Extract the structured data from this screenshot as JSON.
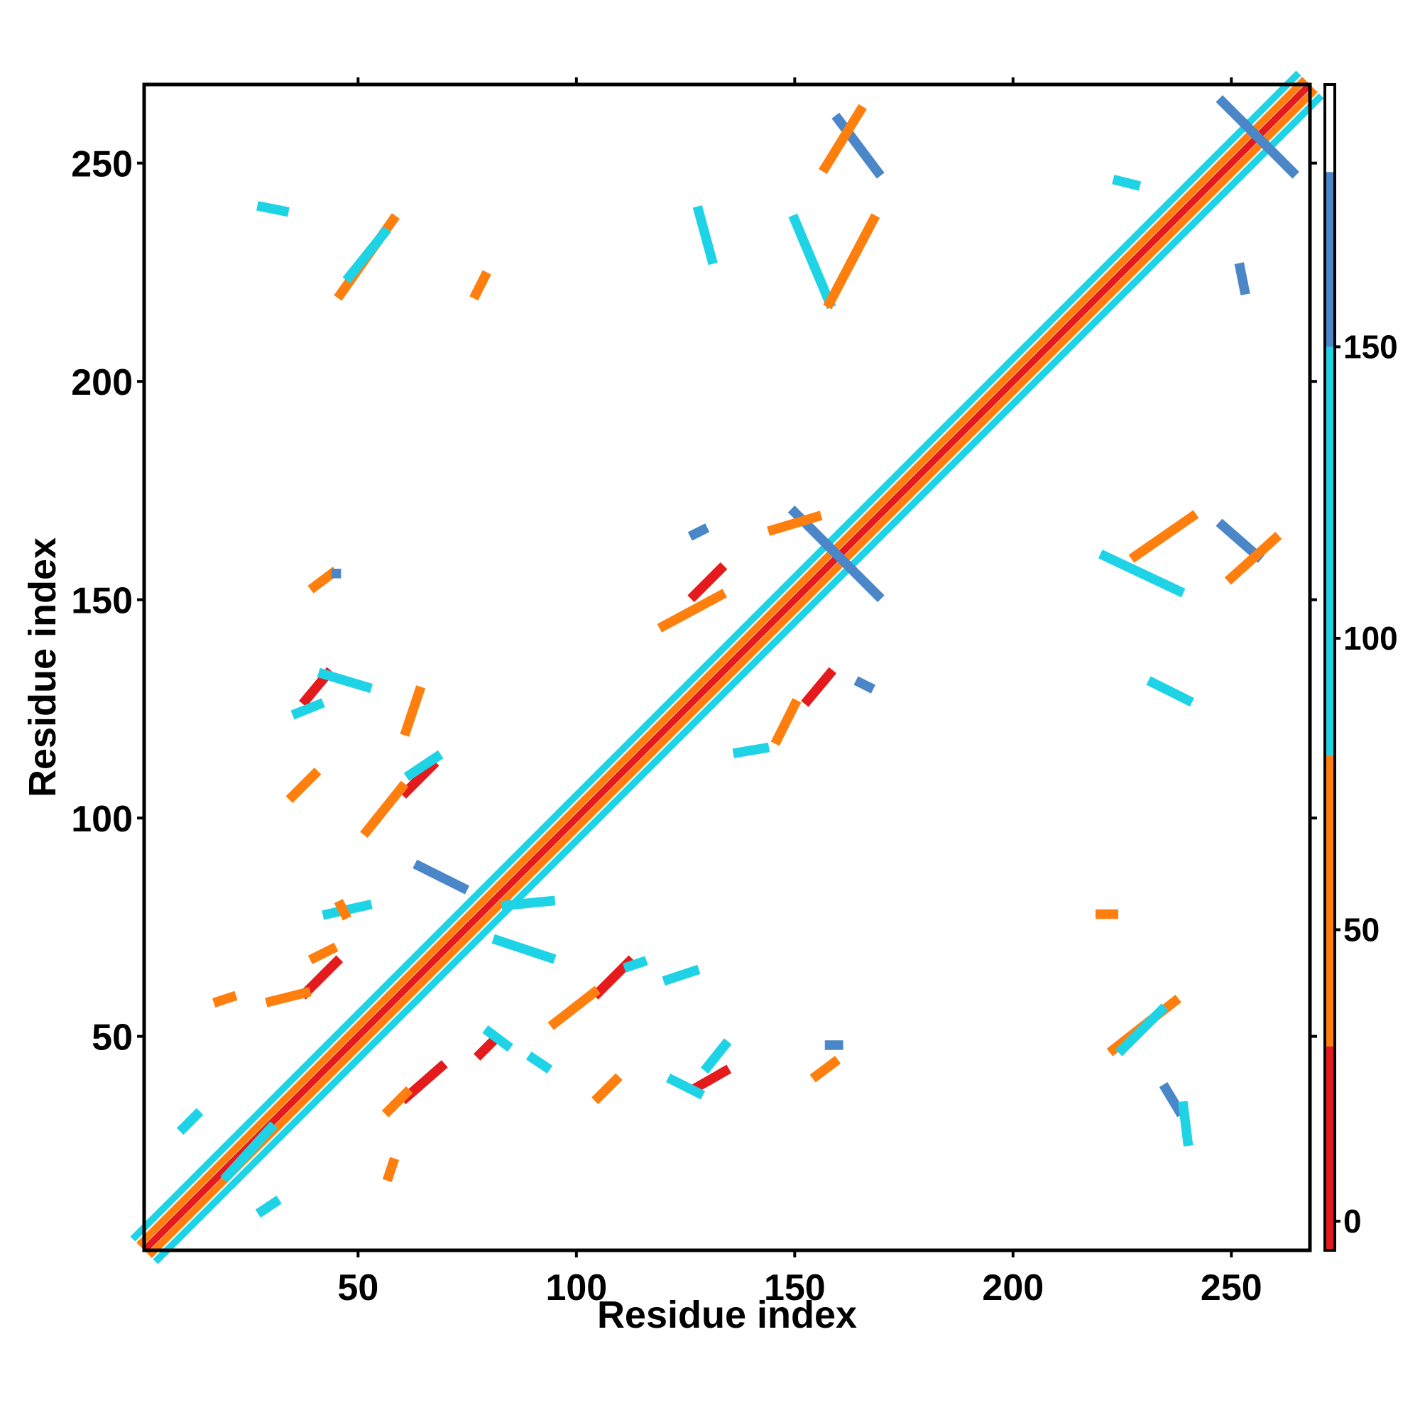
{
  "chart_data": {
    "type": "heatmap",
    "title": "",
    "xlabel": "Residue index",
    "ylabel": "Residue index",
    "xlim": [
      1,
      268
    ],
    "ylim": [
      1,
      268
    ],
    "x_ticks": [
      50,
      100,
      150,
      200,
      250
    ],
    "y_ticks": [
      50,
      100,
      150,
      200,
      250
    ],
    "colorbar": {
      "ticks": [
        0,
        50,
        100,
        150
      ],
      "range": [
        -5,
        195
      ],
      "bands": [
        {
          "from": -5,
          "to": 30,
          "color": "#e41a1c"
        },
        {
          "from": 30,
          "to": 80,
          "color": "#ff7f0e"
        },
        {
          "from": 80,
          "to": 150,
          "color": "#1fd3e6"
        },
        {
          "from": 150,
          "to": 180,
          "color": "#4a86c8"
        },
        {
          "from": 180,
          "to": 195,
          "color": "#ffffff"
        }
      ]
    },
    "diagonal": {
      "from": 1,
      "to": 268,
      "colors": [
        "#e41a1c",
        "#ff7f0e",
        "#1fd3e6"
      ]
    },
    "contact_segments": [
      {
        "x": [
          160,
          169
        ],
        "y": [
          260,
          248
        ],
        "color": "#4a86c8"
      },
      {
        "x": [
          157,
          165
        ],
        "y": [
          249,
          262
        ],
        "color": "#ff7f0e"
      },
      {
        "x": [
          28,
          33
        ],
        "y": [
          240,
          239
        ],
        "color": "#1fd3e6"
      },
      {
        "x": [
          46,
          58
        ],
        "y": [
          220,
          237
        ],
        "color": "#ff7f0e"
      },
      {
        "x": [
          48,
          56
        ],
        "y": [
          224,
          234
        ],
        "color": "#1fd3e6"
      },
      {
        "x": [
          77,
          79
        ],
        "y": [
          220,
          224
        ],
        "color": "#ff7f0e"
      },
      {
        "x": [
          128,
          131
        ],
        "y": [
          239,
          228
        ],
        "color": "#1fd3e6"
      },
      {
        "x": [
          150,
          158
        ],
        "y": [
          237,
          218
        ],
        "color": "#1fd3e6"
      },
      {
        "x": [
          158,
          168
        ],
        "y": [
          218,
          237
        ],
        "color": "#ff7f0e"
      },
      {
        "x": [
          248,
          264
        ],
        "y": [
          264,
          248
        ],
        "color": "#4a86c8"
      },
      {
        "x": [
          224,
          228
        ],
        "y": [
          246,
          245
        ],
        "color": "#1fd3e6"
      },
      {
        "x": [
          252,
          253
        ],
        "y": [
          226,
          221
        ],
        "color": "#4a86c8"
      },
      {
        "x": [
          150,
          169
        ],
        "y": [
          170,
          151
        ],
        "color": "#4a86c8"
      },
      {
        "x": [
          145,
          155
        ],
        "y": [
          166,
          169
        ],
        "color": "#ff7f0e"
      },
      {
        "x": [
          127,
          133
        ],
        "y": [
          151,
          157
        ],
        "color": "#e41a1c"
      },
      {
        "x": [
          120,
          133
        ],
        "y": [
          144,
          151
        ],
        "color": "#ff7f0e"
      },
      {
        "x": [
          127,
          129
        ],
        "y": [
          165,
          166
        ],
        "color": "#4a86c8"
      },
      {
        "x": [
          40,
          44
        ],
        "y": [
          153,
          156
        ],
        "color": "#ff7f0e"
      },
      {
        "x": [
          45,
          45
        ],
        "y": [
          156,
          156
        ],
        "color": "#4a86c8"
      },
      {
        "x": [
          38,
          43
        ],
        "y": [
          127,
          133
        ],
        "color": "#e41a1c"
      },
      {
        "x": [
          36,
          41
        ],
        "y": [
          124,
          126
        ],
        "color": "#1fd3e6"
      },
      {
        "x": [
          42,
          52
        ],
        "y": [
          133,
          130
        ],
        "color": "#1fd3e6"
      },
      {
        "x": [
          61,
          67
        ],
        "y": [
          106,
          112
        ],
        "color": "#e41a1c"
      },
      {
        "x": [
          62,
          68
        ],
        "y": [
          110,
          114
        ],
        "color": "#1fd3e6"
      },
      {
        "x": [
          52,
          60
        ],
        "y": [
          97,
          107
        ],
        "color": "#ff7f0e"
      },
      {
        "x": [
          35,
          40
        ],
        "y": [
          105,
          110
        ],
        "color": "#ff7f0e"
      },
      {
        "x": [
          61,
          64
        ],
        "y": [
          120,
          129
        ],
        "color": "#ff7f0e"
      },
      {
        "x": [
          153,
          158
        ],
        "y": [
          127,
          133
        ],
        "color": "#e41a1c"
      },
      {
        "x": [
          146,
          150
        ],
        "y": [
          118,
          126
        ],
        "color": "#ff7f0e"
      },
      {
        "x": [
          165,
          167
        ],
        "y": [
          131,
          130
        ],
        "color": "#4a86c8"
      },
      {
        "x": [
          137,
          143
        ],
        "y": [
          115,
          116
        ],
        "color": "#1fd3e6"
      },
      {
        "x": [
          228,
          241
        ],
        "y": [
          160,
          169
        ],
        "color": "#ff7f0e"
      },
      {
        "x": [
          221,
          238
        ],
        "y": [
          160,
          152
        ],
        "color": "#1fd3e6"
      },
      {
        "x": [
          248,
          256
        ],
        "y": [
          167,
          160
        ],
        "color": "#4a86c8"
      },
      {
        "x": [
          250,
          260
        ],
        "y": [
          155,
          164
        ],
        "color": "#ff7f0e"
      },
      {
        "x": [
          232,
          240
        ],
        "y": [
          131,
          127
        ],
        "color": "#1fd3e6"
      },
      {
        "x": [
          64,
          74
        ],
        "y": [
          89,
          84
        ],
        "color": "#4a86c8"
      },
      {
        "x": [
          82,
          94
        ],
        "y": [
          72,
          68
        ],
        "color": "#1fd3e6"
      },
      {
        "x": [
          84,
          94
        ],
        "y": [
          80,
          81
        ],
        "color": "#1fd3e6"
      },
      {
        "x": [
          43,
          52
        ],
        "y": [
          78,
          80
        ],
        "color": "#1fd3e6"
      },
      {
        "x": [
          46,
          47
        ],
        "y": [
          80,
          78
        ],
        "color": "#ff7f0e"
      },
      {
        "x": [
          38,
          45
        ],
        "y": [
          60,
          67
        ],
        "color": "#e41a1c"
      },
      {
        "x": [
          30,
          38
        ],
        "y": [
          58,
          60
        ],
        "color": "#ff7f0e"
      },
      {
        "x": [
          40,
          44
        ],
        "y": [
          68,
          70
        ],
        "color": "#ff7f0e"
      },
      {
        "x": [
          18,
          21
        ],
        "y": [
          58,
          59
        ],
        "color": "#ff7f0e"
      },
      {
        "x": [
          105,
          112
        ],
        "y": [
          60,
          67
        ],
        "color": "#e41a1c"
      },
      {
        "x": [
          95,
          104
        ],
        "y": [
          53,
          60
        ],
        "color": "#ff7f0e"
      },
      {
        "x": [
          112,
          115
        ],
        "y": [
          66,
          67
        ],
        "color": "#1fd3e6"
      },
      {
        "x": [
          121,
          127
        ],
        "y": [
          63,
          65
        ],
        "color": "#1fd3e6"
      },
      {
        "x": [
          61,
          69
        ],
        "y": [
          36,
          43
        ],
        "color": "#e41a1c"
      },
      {
        "x": [
          57,
          61
        ],
        "y": [
          33,
          37
        ],
        "color": "#ff7f0e"
      },
      {
        "x": [
          127,
          134
        ],
        "y": [
          38,
          42
        ],
        "color": "#e41a1c"
      },
      {
        "x": [
          122,
          128
        ],
        "y": [
          40,
          37
        ],
        "color": "#1fd3e6"
      },
      {
        "x": [
          130,
          134
        ],
        "y": [
          43,
          48
        ],
        "color": "#1fd3e6"
      },
      {
        "x": [
          105,
          109
        ],
        "y": [
          36,
          40
        ],
        "color": "#ff7f0e"
      },
      {
        "x": [
          155,
          159
        ],
        "y": [
          41,
          44
        ],
        "color": "#ff7f0e"
      },
      {
        "x": [
          158,
          160
        ],
        "y": [
          48,
          48
        ],
        "color": "#4a86c8"
      },
      {
        "x": [
          78,
          81
        ],
        "y": [
          46,
          49
        ],
        "color": "#e41a1c"
      },
      {
        "x": [
          80,
          84
        ],
        "y": [
          51,
          48
        ],
        "color": "#1fd3e6"
      },
      {
        "x": [
          90,
          93
        ],
        "y": [
          45,
          43
        ],
        "color": "#1fd3e6"
      },
      {
        "x": [
          220,
          223
        ],
        "y": [
          78,
          78
        ],
        "color": "#ff7f0e"
      },
      {
        "x": [
          223,
          237
        ],
        "y": [
          47,
          58
        ],
        "color": "#ff7f0e"
      },
      {
        "x": [
          225,
          234
        ],
        "y": [
          47,
          56
        ],
        "color": "#1fd3e6"
      },
      {
        "x": [
          235,
          238
        ],
        "y": [
          38,
          33
        ],
        "color": "#4a86c8"
      },
      {
        "x": [
          239,
          240
        ],
        "y": [
          34,
          26
        ],
        "color": "#1fd3e6"
      },
      {
        "x": [
          57,
          58
        ],
        "y": [
          18,
          21
        ],
        "color": "#ff7f0e"
      },
      {
        "x": [
          20,
          30
        ],
        "y": [
          18,
          29
        ],
        "color": "#1fd3e6"
      },
      {
        "x": [
          28,
          31
        ],
        "y": [
          10,
          12
        ],
        "color": "#1fd3e6"
      },
      {
        "x": [
          10,
          13
        ],
        "y": [
          29,
          32
        ],
        "color": "#1fd3e6"
      }
    ]
  }
}
